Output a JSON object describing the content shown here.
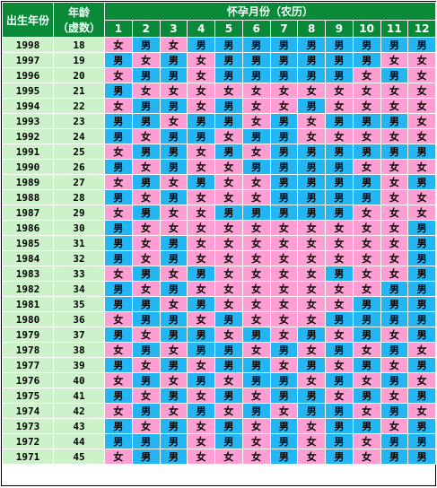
{
  "header": {
    "birth_year_label": "出生年份",
    "age_label_line1": "年龄",
    "age_label_line2": "（虚数）",
    "month_header": "怀孕月份（农历）",
    "months": [
      "1",
      "2",
      "3",
      "4",
      "5",
      "6",
      "7",
      "8",
      "9",
      "10",
      "11",
      "12"
    ]
  },
  "rows": [
    {
      "year": "1998",
      "age": "18",
      "cells": [
        "女",
        "男",
        "女",
        "男",
        "男",
        "男",
        "男",
        "男",
        "男",
        "男",
        "男",
        "男"
      ]
    },
    {
      "year": "1997",
      "age": "19",
      "cells": [
        "男",
        "女",
        "男",
        "女",
        "男",
        "男",
        "男",
        "男",
        "男",
        "男",
        "女",
        "女"
      ]
    },
    {
      "year": "1996",
      "age": "20",
      "cells": [
        "女",
        "男",
        "男",
        "女",
        "男",
        "男",
        "男",
        "男",
        "男",
        "女",
        "男",
        "女"
      ]
    },
    {
      "year": "1995",
      "age": "21",
      "cells": [
        "男",
        "女",
        "女",
        "女",
        "女",
        "女",
        "女",
        "女",
        "女",
        "女",
        "女",
        "女"
      ]
    },
    {
      "year": "1994",
      "age": "22",
      "cells": [
        "女",
        "男",
        "男",
        "女",
        "男",
        "女",
        "女",
        "男",
        "女",
        "女",
        "女",
        "女"
      ]
    },
    {
      "year": "1993",
      "age": "23",
      "cells": [
        "男",
        "男",
        "女",
        "男",
        "男",
        "女",
        "男",
        "女",
        "男",
        "男",
        "男",
        "女"
      ]
    },
    {
      "year": "1992",
      "age": "24",
      "cells": [
        "男",
        "女",
        "男",
        "男",
        "女",
        "男",
        "男",
        "女",
        "女",
        "女",
        "女",
        "女"
      ]
    },
    {
      "year": "1991",
      "age": "25",
      "cells": [
        "女",
        "男",
        "男",
        "女",
        "男",
        "女",
        "男",
        "男",
        "男",
        "男",
        "男",
        "男"
      ]
    },
    {
      "year": "1990",
      "age": "26",
      "cells": [
        "男",
        "女",
        "男",
        "女",
        "女",
        "男",
        "男",
        "男",
        "男",
        "女",
        "女",
        "女"
      ]
    },
    {
      "year": "1989",
      "age": "27",
      "cells": [
        "女",
        "男",
        "女",
        "男",
        "女",
        "女",
        "男",
        "男",
        "男",
        "男",
        "女",
        "男"
      ]
    },
    {
      "year": "1988",
      "age": "28",
      "cells": [
        "男",
        "女",
        "男",
        "女",
        "女",
        "女",
        "男",
        "男",
        "男",
        "男",
        "女",
        "女"
      ]
    },
    {
      "year": "1987",
      "age": "29",
      "cells": [
        "女",
        "男",
        "女",
        "女",
        "男",
        "男",
        "男",
        "男",
        "男",
        "女",
        "女",
        "女"
      ]
    },
    {
      "year": "1986",
      "age": "30",
      "cells": [
        "男",
        "女",
        "女",
        "女",
        "女",
        "女",
        "女",
        "女",
        "女",
        "女",
        "女",
        "男"
      ]
    },
    {
      "year": "1985",
      "age": "31",
      "cells": [
        "男",
        "女",
        "男",
        "女",
        "女",
        "女",
        "女",
        "女",
        "女",
        "女",
        "女",
        "男"
      ]
    },
    {
      "year": "1984",
      "age": "32",
      "cells": [
        "男",
        "女",
        "男",
        "女",
        "女",
        "女",
        "女",
        "女",
        "女",
        "女",
        "女",
        "男"
      ]
    },
    {
      "year": "1983",
      "age": "33",
      "cells": [
        "女",
        "男",
        "女",
        "男",
        "女",
        "女",
        "女",
        "女",
        "男",
        "女",
        "女",
        "男"
      ]
    },
    {
      "year": "1982",
      "age": "34",
      "cells": [
        "男",
        "女",
        "男",
        "女",
        "女",
        "女",
        "女",
        "女",
        "女",
        "女",
        "男",
        "男"
      ]
    },
    {
      "year": "1981",
      "age": "35",
      "cells": [
        "男",
        "男",
        "女",
        "男",
        "女",
        "女",
        "女",
        "女",
        "女",
        "男",
        "男",
        "男"
      ]
    },
    {
      "year": "1980",
      "age": "36",
      "cells": [
        "女",
        "男",
        "男",
        "女",
        "男",
        "女",
        "女",
        "女",
        "男",
        "男",
        "男",
        "男"
      ]
    },
    {
      "year": "1979",
      "age": "37",
      "cells": [
        "男",
        "女",
        "男",
        "男",
        "女",
        "男",
        "女",
        "男",
        "女",
        "男",
        "女",
        "男"
      ]
    },
    {
      "year": "1978",
      "age": "38",
      "cells": [
        "女",
        "男",
        "女",
        "男",
        "男",
        "女",
        "男",
        "女",
        "男",
        "女",
        "男",
        "女"
      ]
    },
    {
      "year": "1977",
      "age": "39",
      "cells": [
        "男",
        "女",
        "男",
        "女",
        "男",
        "男",
        "女",
        "男",
        "女",
        "男",
        "女",
        "男"
      ]
    },
    {
      "year": "1976",
      "age": "40",
      "cells": [
        "女",
        "男",
        "女",
        "男",
        "女",
        "男",
        "男",
        "女",
        "男",
        "女",
        "男",
        "女"
      ]
    },
    {
      "year": "1975",
      "age": "41",
      "cells": [
        "男",
        "女",
        "男",
        "女",
        "男",
        "女",
        "男",
        "男",
        "女",
        "男",
        "女",
        "男"
      ]
    },
    {
      "year": "1974",
      "age": "42",
      "cells": [
        "女",
        "男",
        "女",
        "男",
        "女",
        "男",
        "女",
        "男",
        "男",
        "女",
        "男",
        "女"
      ]
    },
    {
      "year": "1973",
      "age": "43",
      "cells": [
        "男",
        "女",
        "男",
        "女",
        "男",
        "女",
        "男",
        "女",
        "男",
        "男",
        "女",
        "男"
      ]
    },
    {
      "year": "1972",
      "age": "44",
      "cells": [
        "男",
        "男",
        "男",
        "女",
        "男",
        "女",
        "男",
        "女",
        "男",
        "女",
        "男",
        "男"
      ]
    },
    {
      "year": "1971",
      "age": "45",
      "cells": [
        "女",
        "男",
        "男",
        "女",
        "女",
        "女",
        "男",
        "女",
        "男",
        "女",
        "男",
        "男"
      ]
    }
  ],
  "colors": {
    "girl": "#ff9ed2",
    "boy": "#23b6f2",
    "header": "#0a8a38",
    "label_bg": "#cbf2c9"
  }
}
